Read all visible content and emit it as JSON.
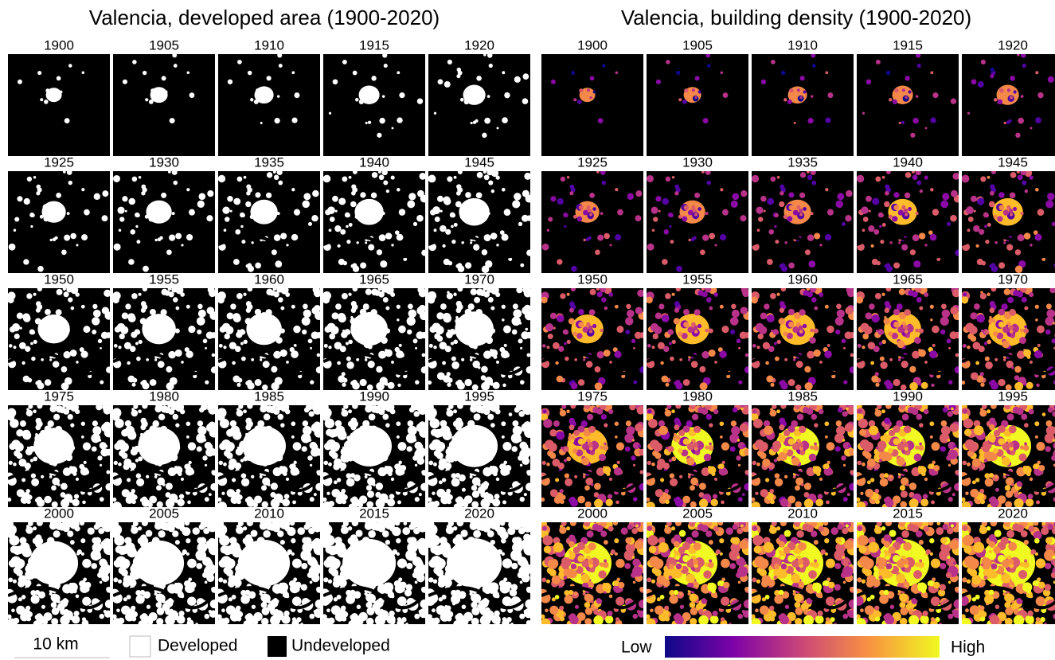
{
  "left_panel": {
    "title": "Valencia, developed area (1900-2020)",
    "years": [
      "1900",
      "1905",
      "1910",
      "1915",
      "1920",
      "1925",
      "1930",
      "1935",
      "1940",
      "1945",
      "1950",
      "1955",
      "1960",
      "1965",
      "1970",
      "1975",
      "1980",
      "1985",
      "1990",
      "1995",
      "2000",
      "2005",
      "2010",
      "2015",
      "2020"
    ]
  },
  "right_panel": {
    "title": "Valencia, building density (1900-2020)",
    "years": [
      "1900",
      "1905",
      "1910",
      "1915",
      "1920",
      "1925",
      "1930",
      "1935",
      "1940",
      "1945",
      "1950",
      "1955",
      "1960",
      "1965",
      "1970",
      "1975",
      "1980",
      "1985",
      "1990",
      "1995",
      "2000",
      "2005",
      "2010",
      "2015",
      "2020"
    ]
  },
  "legend": {
    "scale_bar": "10 km",
    "developed": "Developed",
    "undeveloped": "Undeveloped",
    "low": "Low",
    "high": "High"
  }
}
